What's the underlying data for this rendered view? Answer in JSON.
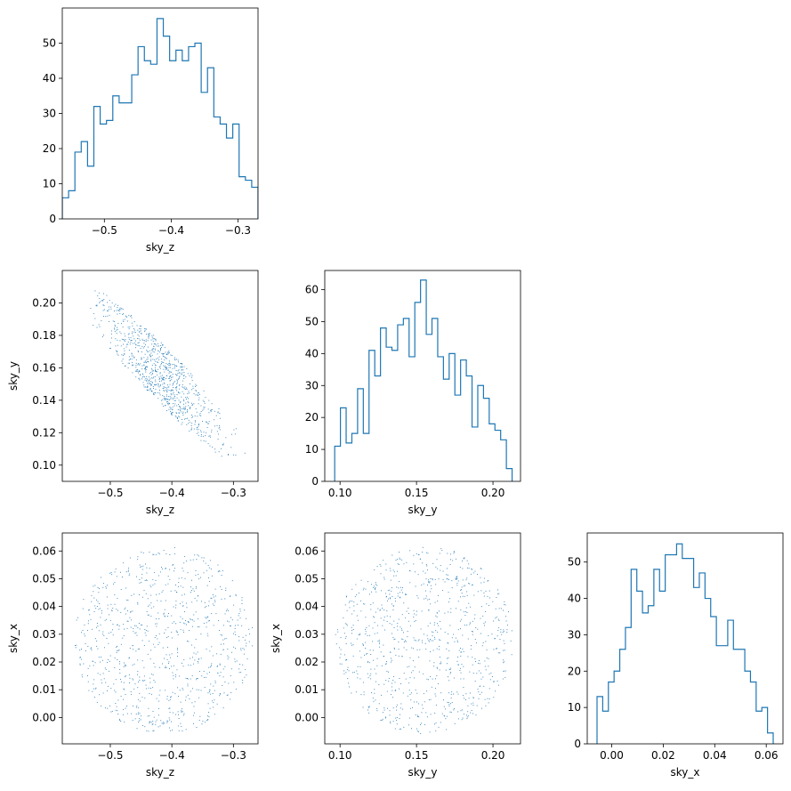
{
  "chart_data": [
    {
      "type": "histogram",
      "variable": "sky_z",
      "xlabel": "sky_z",
      "ylabel": "",
      "xlim": [
        -0.563,
        -0.27
      ],
      "ylim": [
        0,
        60
      ],
      "xticks": [
        -0.5,
        -0.4,
        -0.3
      ],
      "xtick_labels": [
        "−0.5",
        "−0.4",
        "−0.3"
      ],
      "yticks": [
        0,
        10,
        20,
        30,
        40,
        50
      ],
      "ytick_labels": [
        "0",
        "10",
        "20",
        "30",
        "40",
        "50"
      ],
      "bin_start": -0.563,
      "bin_end": -0.27,
      "counts": [
        6,
        8,
        19,
        22,
        15,
        32,
        27,
        28,
        35,
        33,
        33,
        41,
        49,
        45,
        44,
        57,
        52,
        45,
        48,
        45,
        49,
        50,
        36,
        43,
        29,
        27,
        23,
        27,
        12,
        11,
        9
      ],
      "color": "#1f77b4"
    },
    {
      "type": "scatter",
      "xlabel": "sky_z",
      "ylabel": "sky_y",
      "xlim": [
        -0.578,
        -0.26
      ],
      "ylim": [
        0.09,
        0.22
      ],
      "xticks": [
        -0.5,
        -0.4,
        -0.3
      ],
      "xtick_labels": [
        "−0.5",
        "−0.4",
        "−0.3"
      ],
      "yticks": [
        0.1,
        0.12,
        0.14,
        0.16,
        0.18,
        0.2
      ],
      "ytick_labels": [
        "0.10",
        "0.12",
        "0.14",
        "0.16",
        "0.18",
        "0.20"
      ],
      "point_count": 900,
      "color": "#1f77b4"
    },
    {
      "type": "histogram",
      "variable": "sky_y",
      "xlabel": "sky_y",
      "ylabel": "",
      "xlim": [
        0.09,
        0.218
      ],
      "ylim": [
        0,
        66
      ],
      "xticks": [
        0.1,
        0.15,
        0.2
      ],
      "xtick_labels": [
        "0.10",
        "0.15",
        "0.20"
      ],
      "yticks": [
        0,
        10,
        20,
        30,
        40,
        50,
        60
      ],
      "ytick_labels": [
        "0",
        "10",
        "20",
        "30",
        "40",
        "50",
        "60"
      ],
      "bin_start": 0.0965,
      "bin_end": 0.2125,
      "counts": [
        11,
        23,
        12,
        15,
        29,
        15,
        41,
        33,
        48,
        42,
        41,
        49,
        51,
        39,
        56,
        63,
        46,
        51,
        39,
        32,
        40,
        27,
        38,
        33,
        17,
        30,
        26,
        18,
        16,
        13,
        4
      ],
      "color": "#1f77b4"
    },
    {
      "type": "scatter",
      "xlabel": "sky_z",
      "ylabel": "sky_x",
      "xlim": [
        -0.578,
        -0.26
      ],
      "ylim": [
        -0.0095,
        0.0665
      ],
      "xticks": [
        -0.5,
        -0.4,
        -0.3
      ],
      "xtick_labels": [
        "−0.5",
        "−0.4",
        "−0.3"
      ],
      "yticks": [
        0.0,
        0.01,
        0.02,
        0.03,
        0.04,
        0.05,
        0.06
      ],
      "ytick_labels": [
        "0.00",
        "0.01",
        "0.02",
        "0.03",
        "0.04",
        "0.05",
        "0.06"
      ],
      "point_count": 900,
      "color": "#1f77b4"
    },
    {
      "type": "scatter",
      "xlabel": "sky_y",
      "ylabel": "sky_x",
      "xlim": [
        0.09,
        0.218
      ],
      "ylim": [
        -0.0095,
        0.0665
      ],
      "xticks": [
        0.1,
        0.15,
        0.2
      ],
      "xtick_labels": [
        "0.10",
        "0.15",
        "0.20"
      ],
      "yticks": [
        0.0,
        0.01,
        0.02,
        0.03,
        0.04,
        0.05,
        0.06
      ],
      "ytick_labels": [
        "0.00",
        "0.01",
        "0.02",
        "0.03",
        "0.04",
        "0.05",
        "0.06"
      ],
      "point_count": 900,
      "color": "#1f77b4"
    },
    {
      "type": "histogram",
      "variable": "sky_x",
      "xlabel": "sky_x",
      "ylabel": "",
      "xlim": [
        -0.0095,
        0.0665
      ],
      "ylim": [
        0,
        58
      ],
      "xticks": [
        0.0,
        0.02,
        0.04,
        0.06
      ],
      "xtick_labels": [
        "0.00",
        "0.02",
        "0.04",
        "0.06"
      ],
      "yticks": [
        0,
        10,
        20,
        30,
        40,
        50
      ],
      "ytick_labels": [
        "0",
        "10",
        "20",
        "30",
        "40",
        "50"
      ],
      "bin_start": -0.0057,
      "bin_end": 0.0627,
      "counts": [
        13,
        9,
        17,
        20,
        26,
        32,
        48,
        42,
        36,
        38,
        48,
        42,
        52,
        52,
        55,
        51,
        51,
        43,
        47,
        40,
        35,
        27,
        27,
        34,
        26,
        26,
        20,
        17,
        9,
        10,
        3
      ],
      "color": "#1f77b4"
    }
  ]
}
